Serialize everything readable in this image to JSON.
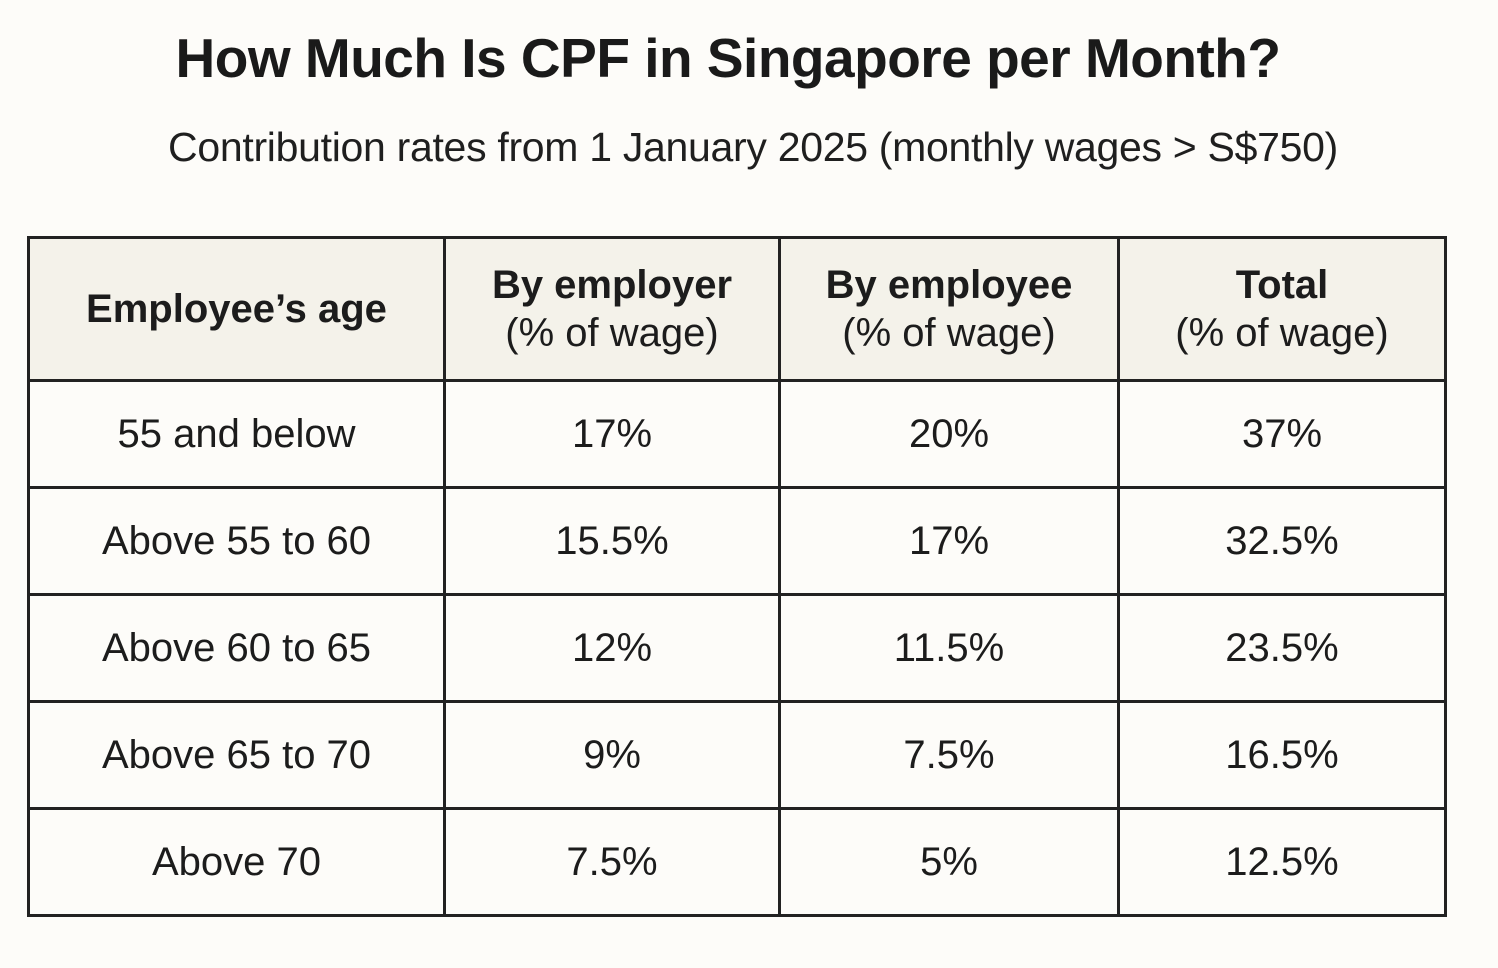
{
  "title": "How Much Is CPF in Singapore per Month?",
  "subtitle": "Contribution rates from 1 January 2025 (monthly wages > S$750)",
  "table": {
    "headers": [
      {
        "main": "Employee’s age",
        "sub": ""
      },
      {
        "main": "By employer",
        "sub": "(% of wage)"
      },
      {
        "main": "By employee",
        "sub": "(% of wage)"
      },
      {
        "main": "Total",
        "sub": "(% of wage)"
      }
    ],
    "rows": [
      {
        "age": "55 and below",
        "employer": "17%",
        "employee": "20%",
        "total": "37%"
      },
      {
        "age": "Above 55 to 60",
        "employer": "15.5%",
        "employee": "17%",
        "total": "32.5%"
      },
      {
        "age": "Above 60 to 65",
        "employer": "12%",
        "employee": "11.5%",
        "total": "23.5%"
      },
      {
        "age": "Above 65 to 70",
        "employer": "9%",
        "employee": "7.5%",
        "total": "16.5%"
      },
      {
        "age": "Above 70",
        "employer": "7.5%",
        "employee": "5%",
        "total": "12.5%"
      }
    ]
  },
  "colors": {
    "background": "#fdfcf9",
    "header_background": "#f4f2ea",
    "border": "#222222",
    "text": "#1c1c1c"
  }
}
